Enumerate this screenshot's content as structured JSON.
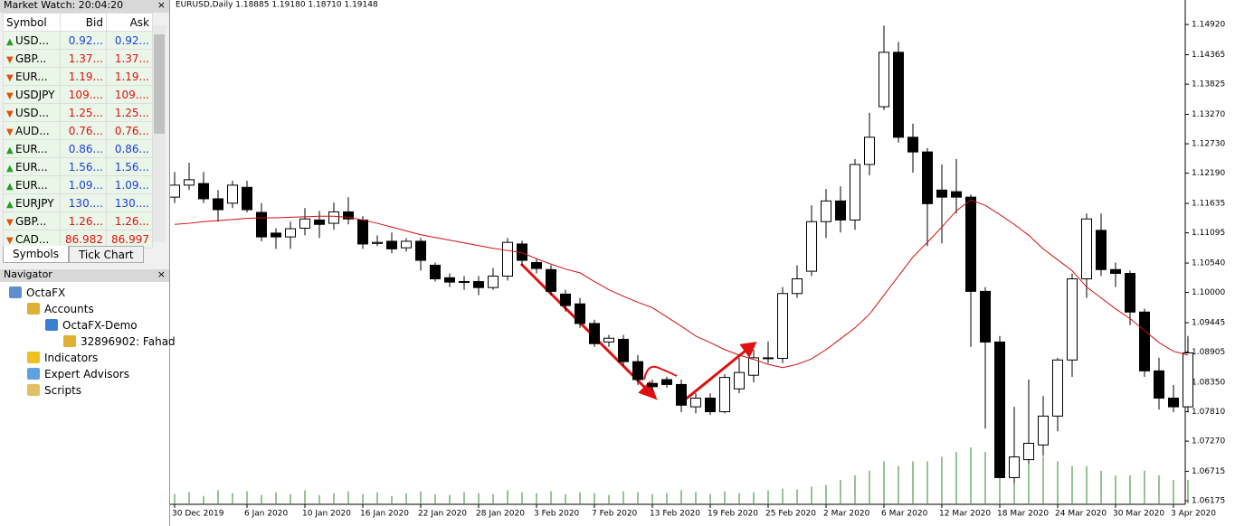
{
  "market_watch": {
    "title": "Market Watch: 20:04:20",
    "headers": [
      "Symbol",
      "Bid",
      "Ask"
    ],
    "rows": [
      {
        "symbol": "USD...",
        "bid": "0.92...",
        "ask": "0.92...",
        "trend": "up"
      },
      {
        "symbol": "GBP...",
        "bid": "1.37...",
        "ask": "1.37...",
        "trend": "down"
      },
      {
        "symbol": "EUR...",
        "bid": "1.19...",
        "ask": "1.19...",
        "trend": "down"
      },
      {
        "symbol": "USDJPY",
        "bid": "109....",
        "ask": "109....",
        "trend": "down"
      },
      {
        "symbol": "USD...",
        "bid": "1.25...",
        "ask": "1.25...",
        "trend": "down"
      },
      {
        "symbol": "AUD...",
        "bid": "0.76...",
        "ask": "0.76...",
        "trend": "down"
      },
      {
        "symbol": "EUR...",
        "bid": "0.86...",
        "ask": "0.86...",
        "trend": "up"
      },
      {
        "symbol": "EUR...",
        "bid": "1.56...",
        "ask": "1.56...",
        "trend": "up"
      },
      {
        "symbol": "EUR...",
        "bid": "1.09...",
        "ask": "1.09...",
        "trend": "up"
      },
      {
        "symbol": "EURJPY",
        "bid": "130....",
        "ask": "130....",
        "trend": "up"
      },
      {
        "symbol": "GBP...",
        "bid": "1.26...",
        "ask": "1.26...",
        "trend": "down"
      },
      {
        "symbol": "CAD...",
        "bid": "86.982",
        "ask": "86.997",
        "trend": "down"
      }
    ],
    "tabs": [
      "Symbols",
      "Tick Chart"
    ]
  },
  "navigator": {
    "title": "Navigator",
    "items": [
      {
        "label": "OctaFX",
        "level": 0,
        "icon": "#5b8fd0"
      },
      {
        "label": "Accounts",
        "level": 1,
        "icon": "#e0b030"
      },
      {
        "label": "OctaFX-Demo",
        "level": 2,
        "icon": "#3a7fd0"
      },
      {
        "label": "32896902: Fahad",
        "level": 3,
        "icon": "#e0b030"
      },
      {
        "label": "Indicators",
        "level": 1,
        "icon": "#f0c020"
      },
      {
        "label": "Expert Advisors",
        "level": 1,
        "icon": "#60a0e0"
      },
      {
        "label": "Scripts",
        "level": 1,
        "icon": "#e0c060"
      }
    ]
  },
  "chart_data": {
    "type": "candlestick",
    "title": "EURUSD,Daily  1.18885 1.19180 1.18710 1.19148",
    "categories": [
      "30 Dec 2019",
      null,
      null,
      null,
      null,
      "6 Jan 2020",
      null,
      null,
      null,
      "10 Jan 2020",
      null,
      null,
      null,
      "16 Jan 2020",
      null,
      null,
      null,
      "22 Jan 2020",
      null,
      null,
      null,
      "28 Jan 2020",
      null,
      null,
      null,
      "3 Feb 2020",
      null,
      null,
      null,
      "7 Feb 2020",
      null,
      null,
      null,
      "13 Feb 2020",
      null,
      null,
      null,
      "19 Feb 2020",
      null,
      null,
      null,
      "25 Feb 2020",
      null,
      null,
      null,
      "2 Mar 2020",
      null,
      null,
      null,
      "6 Mar 2020",
      null,
      null,
      null,
      "12 Mar 2020",
      null,
      null,
      null,
      "18 Mar 2020",
      null,
      null,
      null,
      "24 Mar 2020",
      null,
      null,
      null,
      "30 Mar 2020",
      null,
      null,
      null,
      "3 Apr 2020",
      null
    ],
    "open": [
      1.1175,
      1.1197,
      1.12,
      1.1172,
      1.1164,
      1.1193,
      1.1147,
      1.1109,
      1.1102,
      1.1118,
      1.1133,
      1.1127,
      1.1148,
      1.1133,
      1.109,
      1.1094,
      1.1082,
      1.1094,
      1.105,
      1.1027,
      1.1019,
      1.102,
      1.1009,
      1.103,
      1.1089,
      1.1055,
      1.1042,
      1.0997,
      1.0979,
      1.0943,
      1.0909,
      1.0914,
      1.0873,
      1.0833,
      1.084,
      1.0831,
      1.079,
      1.0806,
      1.0781,
      1.0823,
      1.0848,
      1.088,
      1.0879,
      1.0998,
      1.1039,
      1.113,
      1.1168,
      1.1133,
      1.1235,
      1.1341,
      1.1441,
      1.1285,
      1.1258,
      1.1188,
      1.1185,
      1.1175,
      1.1002,
      1.0909,
      1.066,
      1.0693,
      1.072,
      1.0773,
      1.0876,
      1.1025,
      1.1114,
      1.1042,
      1.1035,
      1.0964,
      1.0856,
      1.0806,
      1.079
    ],
    "high": [
      1.1221,
      1.1238,
      1.1221,
      1.1188,
      1.1205,
      1.1205,
      1.1164,
      1.1118,
      1.113,
      1.1155,
      1.115,
      1.1165,
      1.1175,
      1.114,
      1.1105,
      1.111,
      1.11,
      1.11,
      1.1055,
      1.1035,
      1.103,
      1.103,
      1.1045,
      1.11,
      1.1095,
      1.1062,
      1.105,
      1.1005,
      1.099,
      1.095,
      1.0922,
      1.0922,
      1.0885,
      1.084,
      1.0845,
      1.084,
      1.0815,
      1.0815,
      1.085,
      1.088,
      1.0895,
      1.091,
      1.101,
      1.105,
      1.116,
      1.119,
      1.1195,
      1.1245,
      1.133,
      1.149,
      1.146,
      1.131,
      1.1265,
      1.1235,
      1.1245,
      1.118,
      1.101,
      1.092,
      1.079,
      1.084,
      1.081,
      1.088,
      1.1035,
      1.1145,
      1.1145,
      1.1055,
      1.104,
      1.097,
      1.088,
      1.083,
      1.092
    ],
    "low": [
      1.1164,
      1.1188,
      1.1164,
      1.113,
      1.1155,
      1.1147,
      1.1094,
      1.108,
      1.108,
      1.1105,
      1.11,
      1.1115,
      1.1125,
      1.108,
      1.1085,
      1.1072,
      1.1075,
      1.104,
      1.102,
      1.101,
      1.1005,
      1.0995,
      1.1005,
      1.1022,
      1.105,
      1.1035,
      1.0995,
      1.0965,
      1.0935,
      1.09,
      1.09,
      1.0865,
      1.083,
      1.082,
      1.0825,
      1.078,
      1.0778,
      1.0775,
      1.0778,
      1.0815,
      1.0835,
      1.087,
      1.087,
      1.099,
      1.103,
      1.11,
      1.111,
      1.1115,
      1.1215,
      1.1335,
      1.1275,
      1.122,
      1.1085,
      1.109,
      1.1145,
      1.09,
      1.075,
      1.066,
      1.065,
      1.0685,
      1.07,
      1.0745,
      1.0845,
      1.099,
      1.103,
      1.101,
      1.094,
      1.0845,
      1.0785,
      1.078,
      1.078
    ],
    "close": [
      1.1197,
      1.1207,
      1.1172,
      1.1152,
      1.1197,
      1.1152,
      1.1102,
      1.1102,
      1.1117,
      1.1135,
      1.1125,
      1.1148,
      1.1135,
      1.1089,
      1.1092,
      1.108,
      1.1094,
      1.1059,
      1.1025,
      1.1019,
      1.102,
      1.1009,
      1.103,
      1.1092,
      1.1059,
      1.1044,
      1.1002,
      1.0976,
      1.0943,
      1.0906,
      1.0916,
      1.0873,
      1.084,
      1.0827,
      1.0831,
      1.0793,
      1.0806,
      1.0781,
      1.0844,
      1.0853,
      1.088,
      1.0879,
      1.0998,
      1.1025,
      1.113,
      1.1168,
      1.1133,
      1.1235,
      1.1285,
      1.1441,
      1.1285,
      1.1258,
      1.1163,
      1.1175,
      1.1175,
      1.1002,
      1.0909,
      1.066,
      1.0698,
      1.0723,
      1.0773,
      1.0876,
      1.1025,
      1.1135,
      1.1042,
      1.1035,
      1.0964,
      1.0856,
      1.0806,
      1.079,
      1.0889
    ],
    "ma": [
      1.1125,
      1.1127,
      1.113,
      1.1132,
      1.1134,
      1.1136,
      1.1137,
      1.1137,
      1.1138,
      1.1139,
      1.114,
      1.114,
      1.1138,
      1.1133,
      1.1127,
      1.112,
      1.1113,
      1.1106,
      1.1101,
      1.1096,
      1.1091,
      1.1086,
      1.1081,
      1.1077,
      1.1073,
      1.1062,
      1.1052,
      1.1043,
      1.1036,
      1.102,
      1.1005,
      1.0993,
      1.0982,
      1.0972,
      1.0955,
      1.0938,
      1.092,
      1.0908,
      1.0895,
      1.0885,
      1.0877,
      1.0868,
      1.0862,
      1.0868,
      1.0878,
      1.0895,
      1.0915,
      1.0935,
      1.096,
      1.0995,
      1.103,
      1.1065,
      1.1092,
      1.112,
      1.115,
      1.117,
      1.116,
      1.1143,
      1.1125,
      1.1105,
      1.108,
      1.106,
      1.104,
      1.101,
      1.099,
      1.097,
      1.0952,
      1.093,
      1.0908,
      1.0892,
      1.0885
    ],
    "volume": [
      10,
      12,
      8,
      14,
      11,
      13,
      9,
      12,
      10,
      14,
      9,
      11,
      13,
      10,
      12,
      8,
      11,
      13,
      10,
      9,
      12,
      11,
      10,
      14,
      12,
      11,
      13,
      10,
      12,
      11,
      9,
      13,
      12,
      10,
      11,
      14,
      12,
      10,
      13,
      11,
      12,
      14,
      16,
      15,
      18,
      20,
      25,
      30,
      35,
      45,
      40,
      45,
      45,
      50,
      55,
      60,
      55,
      60,
      50,
      45,
      50,
      45,
      40,
      40,
      35,
      30,
      30,
      35,
      30,
      25,
      25
    ],
    "ylim": [
      1.0611,
      1.1537
    ],
    "yticks": [
      {
        "value": 1.1492,
        "label": "1.14920"
      },
      1.14365,
      1.13825,
      {
        "value": 1.1327,
        "label": "1.13270"
      },
      {
        "value": 1.1273,
        "label": "1.12730"
      },
      {
        "value": 1.1219,
        "label": "1.12190"
      },
      1.11635,
      1.11095,
      {
        "value": 1.1054,
        "label": "1.10540"
      },
      {
        "value": 1.1,
        "label": "1.10000"
      },
      1.09445,
      1.08905,
      {
        "value": 1.0835,
        "label": "1.08350"
      },
      {
        "value": 1.0781,
        "label": "1.07810"
      },
      {
        "value": 1.0727,
        "label": "1.07270"
      },
      1.06715,
      1.06175
    ],
    "up_color": "#ffffff",
    "down_color": "#000000",
    "ma_color": "#d01010",
    "volume_color": "#2a8a2a"
  }
}
